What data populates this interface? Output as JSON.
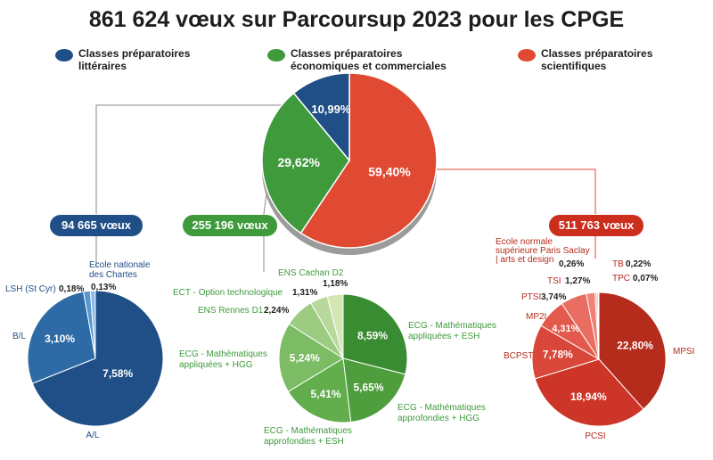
{
  "title": "861 624 vœux sur Parcoursup 2023 pour les CPGE",
  "colors": {
    "litt": "#1f4f86",
    "eco": "#3f9a3c",
    "sci": "#e04a32"
  },
  "legend": [
    {
      "label1": "Classes préparatoires",
      "label2": "littéraires",
      "color": "#1f4f86"
    },
    {
      "label1": "Classes préparatoires",
      "label2": "économiques et commerciales",
      "color": "#3f9a3c"
    },
    {
      "label1": "Classes préparatoires",
      "label2": "scientifiques",
      "color": "#e04a32"
    }
  ],
  "badges": {
    "litt": "94 665 vœux",
    "eco": "255 196 vœux",
    "sci": "511 763 vœux"
  },
  "chart_data": [
    {
      "type": "pie",
      "slices": [
        {
          "label": "Classes préparatoires scientifiques",
          "value": 59.4,
          "display": "59,40%",
          "color": "#e04a32"
        },
        {
          "label": "Classes préparatoires économiques et commerciales",
          "value": 29.62,
          "display": "29,62%",
          "color": "#3f9a3c"
        },
        {
          "label": "Classes préparatoires littéraires",
          "value": 10.99,
          "display": "10,99%",
          "color": "#1f4f86"
        }
      ]
    },
    {
      "type": "pie",
      "slices": [
        {
          "label": "A/L",
          "value": 7.58,
          "display": "7,58%",
          "color": "#1f4f86"
        },
        {
          "label": "B/L",
          "value": 3.1,
          "display": "3,10%",
          "color": "#2e6aa6"
        },
        {
          "label": "LSH (St Cyr)",
          "value": 0.18,
          "display": "0,18%",
          "color": "#5598d3"
        },
        {
          "label": "Ecole nationale des Chartes",
          "value": 0.13,
          "display": "0,13%",
          "color": "#8bbbe4"
        }
      ]
    },
    {
      "type": "pie",
      "slices": [
        {
          "label": "ECG - Mathématiques appliquées + ESH",
          "value": 8.59,
          "display": "8,59%",
          "color": "#3a8c33"
        },
        {
          "label": "ECG - Mathématiques approfondies + HGG",
          "value": 5.65,
          "display": "5,65%",
          "color": "#4e9e3e"
        },
        {
          "label": "ECG - Mathématiques approfondies + ESH",
          "value": 5.41,
          "display": "5,41%",
          "color": "#62ad4c"
        },
        {
          "label": "ECG - Mathématiques appliquées + HGG",
          "value": 5.24,
          "display": "5,24%",
          "color": "#7cbc64"
        },
        {
          "label": "ENS Rennes D1",
          "value": 2.24,
          "display": "2,24%",
          "color": "#9ccb82"
        },
        {
          "label": "ECT - Option technologique",
          "value": 1.31,
          "display": "1,31%",
          "color": "#b9d99c"
        },
        {
          "label": "ENS Cachan D2",
          "value": 1.18,
          "display": "1,18%",
          "color": "#d3e6b4"
        }
      ]
    },
    {
      "type": "pie",
      "slices": [
        {
          "label": "MPSI",
          "value": 22.8,
          "display": "22,80%",
          "color": "#b52b1c"
        },
        {
          "label": "PCSI",
          "value": 18.94,
          "display": "18,94%",
          "color": "#cc3527"
        },
        {
          "label": "BCPST",
          "value": 7.78,
          "display": "7,78%",
          "color": "#d9473a"
        },
        {
          "label": "MP2I",
          "value": 4.31,
          "display": "4,31%",
          "color": "#e35a4c"
        },
        {
          "label": "PTSI",
          "value": 3.74,
          "display": "3,74%",
          "color": "#e96d60"
        },
        {
          "label": "TSI",
          "value": 1.27,
          "display": "1,27%",
          "color": "#ee8276"
        },
        {
          "label": "Ecole normale supérieure Paris Saclay | arts et design",
          "value": 0.26,
          "display": "0,26%",
          "color": "#f09a90"
        },
        {
          "label": "TB",
          "value": 0.22,
          "display": "0,22%",
          "color": "#f4b1a9"
        },
        {
          "label": "TPC",
          "value": 0.07,
          "display": "0,07%",
          "color": "#f8c8c2"
        }
      ]
    }
  ]
}
